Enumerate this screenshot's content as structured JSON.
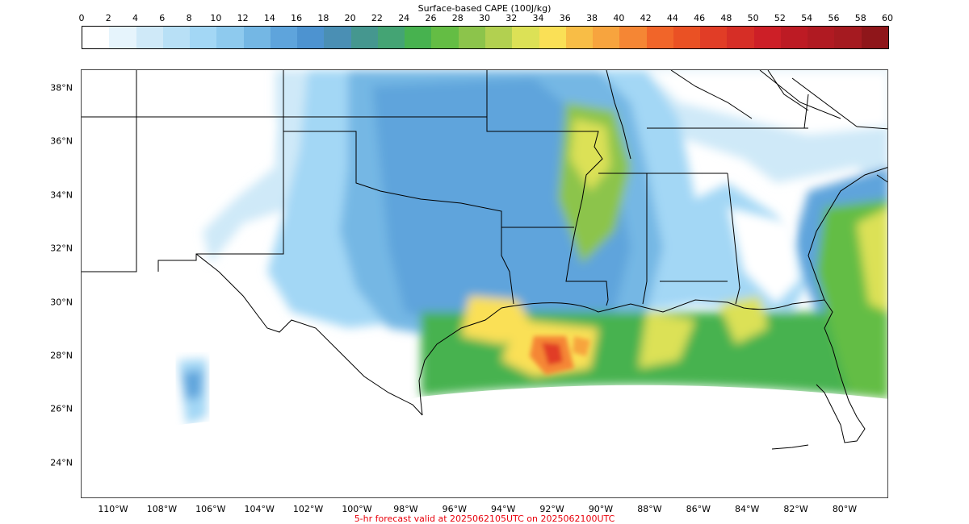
{
  "colorbar": {
    "title": "Surface-based CAPE (100J/kg)",
    "ticks": [
      "0",
      "2",
      "4",
      "6",
      "8",
      "10",
      "12",
      "14",
      "16",
      "18",
      "20",
      "22",
      "24",
      "26",
      "28",
      "30",
      "32",
      "34",
      "36",
      "38",
      "40",
      "42",
      "44",
      "46",
      "48",
      "50",
      "52",
      "54",
      "56",
      "58",
      "60"
    ],
    "colors": [
      "#ffffff",
      "#e6f4fc",
      "#cfe9f8",
      "#b8e0f6",
      "#a3d7f5",
      "#8ecaee",
      "#74b7e4",
      "#5ea4dc",
      "#4d93d0",
      "#4a8fb4",
      "#45978f",
      "#44a474",
      "#47b24f",
      "#64bd44",
      "#8cc44b",
      "#b2d050",
      "#dce156",
      "#fae056",
      "#f8bd46",
      "#f7a43e",
      "#f58634",
      "#f16529",
      "#ea5124",
      "#e13d26",
      "#d62e26",
      "#cd1f27",
      "#bd1b24",
      "#b01a22",
      "#a51a20",
      "#8f161a"
    ]
  },
  "map": {
    "lat_labels": [
      {
        "text": "38°N",
        "lat": 38
      },
      {
        "text": "36°N",
        "lat": 36
      },
      {
        "text": "34°N",
        "lat": 34
      },
      {
        "text": "32°N",
        "lat": 32
      },
      {
        "text": "30°N",
        "lat": 30
      },
      {
        "text": "28°N",
        "lat": 28
      },
      {
        "text": "26°N",
        "lat": 26
      },
      {
        "text": "24°N",
        "lat": 24
      }
    ],
    "lon_labels": [
      {
        "text": "110°W",
        "lon": -110
      },
      {
        "text": "108°W",
        "lon": -108
      },
      {
        "text": "106°W",
        "lon": -106
      },
      {
        "text": "104°W",
        "lon": -104
      },
      {
        "text": "102°W",
        "lon": -102
      },
      {
        "text": "100°W",
        "lon": -100
      },
      {
        "text": "98°W",
        "lon": -98
      },
      {
        "text": "96°W",
        "lon": -96
      },
      {
        "text": "94°W",
        "lon": -94
      },
      {
        "text": "92°W",
        "lon": -92
      },
      {
        "text": "90°W",
        "lon": -90
      },
      {
        "text": "88°W",
        "lon": -88
      },
      {
        "text": "86°W",
        "lon": -86
      },
      {
        "text": "84°W",
        "lon": -84
      },
      {
        "text": "82°W",
        "lon": -82
      },
      {
        "text": "80°W",
        "lon": -80
      }
    ]
  },
  "footer": "5-hr forecast valid at 2025062105UTC on 2025062100UTC"
}
